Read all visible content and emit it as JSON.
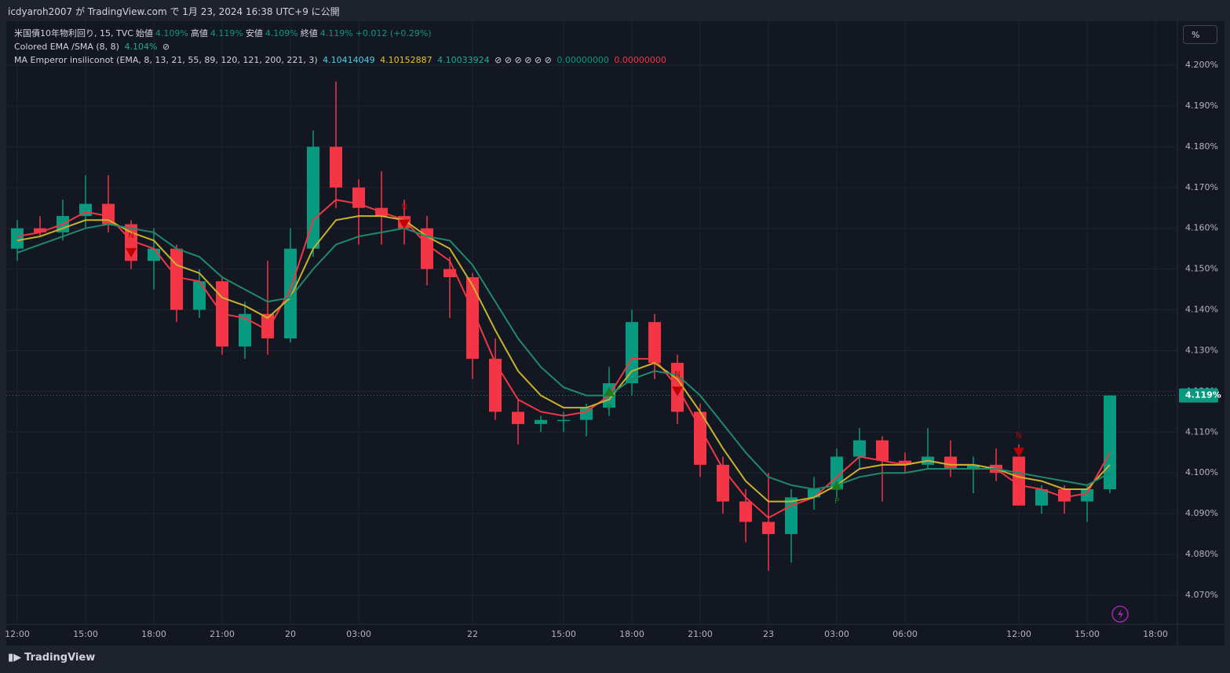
{
  "header": {
    "publish": "icdyaroh2007 が TradingView.com で 1月 23, 2024 16:38 UTC+9 に公開"
  },
  "legend": {
    "symbol": "米国債10年物利回り, 15, TVC",
    "open_label": "始値",
    "open": "4.109%",
    "high_label": "高値",
    "high": "4.119%",
    "low_label": "安値",
    "low": "4.109%",
    "close_label": "終値",
    "close": "4.119%",
    "change": "+0.012 (+0.29%)",
    "ind1": "Colored EMA /SMA (8, 8)",
    "ind1_value": "4.104%",
    "ind1_icon": "⊘",
    "ind2": "MA Emperor insiliconot (EMA, 8, 13, 21, 55, 89, 120, 121, 200, 221, 3)",
    "ind2_v1": "4.10414049",
    "ind2_v2": "4.10152887",
    "ind2_v3": "4.10033924",
    "ind2_icons": "⊘ ⊘ ⊘ ⊘ ⊘ ⊘",
    "ind2_v4": "0.00000000",
    "ind2_v5": "0.00000000"
  },
  "scale_button": "%",
  "footer": "TradingView",
  "chart_data": {
    "type": "candlestick",
    "categories": [
      "12:00",
      null,
      null,
      "15:00",
      null,
      null,
      "18:00",
      null,
      null,
      "21:00",
      null,
      null,
      "20",
      null,
      null,
      "03:00",
      null,
      null,
      null,
      null,
      "22",
      null,
      null,
      null,
      "15:00",
      null,
      null,
      "18:00",
      null,
      null,
      "21:00",
      null,
      null,
      "23",
      null,
      null,
      "03:00",
      null,
      null,
      "06:00",
      null,
      null,
      null,
      null,
      "12:00",
      null,
      null,
      "15:00",
      null,
      null,
      "18:00"
    ],
    "candles": [
      [
        4.155,
        4.162,
        4.152,
        4.16
      ],
      [
        4.16,
        4.163,
        4.158,
        4.159
      ],
      [
        4.159,
        4.167,
        4.157,
        4.163
      ],
      [
        4.163,
        4.173,
        4.16,
        4.166
      ],
      [
        4.166,
        4.173,
        4.159,
        4.161
      ],
      [
        4.161,
        4.162,
        4.15,
        4.152
      ],
      [
        4.152,
        4.16,
        4.145,
        4.155
      ],
      [
        4.155,
        4.156,
        4.137,
        4.14
      ],
      [
        4.14,
        4.15,
        4.138,
        4.147
      ],
      [
        4.147,
        4.148,
        4.129,
        4.131
      ],
      [
        4.131,
        4.142,
        4.128,
        4.139
      ],
      [
        4.139,
        4.152,
        4.129,
        4.133
      ],
      [
        4.133,
        4.16,
        4.132,
        4.155
      ],
      [
        4.155,
        4.184,
        4.153,
        4.18
      ],
      [
        4.18,
        4.196,
        4.165,
        4.17
      ],
      [
        4.17,
        4.172,
        4.156,
        4.165
      ],
      [
        4.165,
        4.174,
        4.156,
        4.163
      ],
      [
        4.163,
        4.167,
        4.156,
        4.16
      ],
      [
        4.16,
        4.163,
        4.146,
        4.15
      ],
      [
        4.15,
        4.153,
        4.138,
        4.148
      ],
      [
        4.148,
        4.149,
        4.123,
        4.128
      ],
      [
        4.128,
        4.133,
        4.113,
        4.115
      ],
      [
        4.115,
        4.118,
        4.107,
        4.112
      ],
      [
        4.112,
        4.114,
        4.11,
        4.113
      ],
      [
        4.113,
        4.115,
        4.11,
        4.113
      ],
      [
        4.113,
        4.117,
        4.109,
        4.116
      ],
      [
        4.116,
        4.126,
        4.114,
        4.122
      ],
      [
        4.122,
        4.14,
        4.119,
        4.137
      ],
      [
        4.137,
        4.139,
        4.123,
        4.127
      ],
      [
        4.127,
        4.129,
        4.112,
        4.115
      ],
      [
        4.115,
        4.117,
        4.099,
        4.102
      ],
      [
        4.102,
        4.104,
        4.09,
        4.093
      ],
      [
        4.093,
        4.096,
        4.083,
        4.088
      ],
      [
        4.088,
        4.1,
        4.076,
        4.085
      ],
      [
        4.085,
        4.096,
        4.078,
        4.094
      ],
      [
        4.094,
        4.099,
        4.091,
        4.096
      ],
      [
        4.096,
        4.106,
        4.094,
        4.104
      ],
      [
        4.104,
        4.111,
        4.101,
        4.108
      ],
      [
        4.108,
        4.109,
        4.093,
        4.103
      ],
      [
        4.103,
        4.105,
        4.1,
        4.102
      ],
      [
        4.102,
        4.111,
        4.101,
        4.104
      ],
      [
        4.104,
        4.108,
        4.099,
        4.101
      ],
      [
        4.101,
        4.104,
        4.095,
        4.102
      ],
      [
        4.102,
        4.106,
        4.098,
        4.1
      ],
      [
        4.104,
        4.107,
        4.095,
        4.092
      ],
      [
        4.092,
        4.097,
        4.09,
        4.096
      ],
      [
        4.096,
        4.097,
        4.09,
        4.093
      ],
      [
        4.093,
        4.097,
        4.088,
        4.096
      ],
      [
        4.096,
        4.119,
        4.095,
        4.119
      ],
      null,
      null
    ],
    "up_color": "#089981",
    "down_color": "#f23645",
    "lines": [
      {
        "color": "#f23645",
        "values": [
          4.158,
          4.159,
          4.161,
          4.164,
          4.163,
          4.157,
          4.155,
          4.148,
          4.147,
          4.139,
          4.138,
          4.135,
          4.145,
          4.162,
          4.167,
          4.166,
          4.164,
          4.162,
          4.156,
          4.152,
          4.14,
          4.127,
          4.118,
          4.115,
          4.114,
          4.115,
          4.119,
          4.128,
          4.128,
          4.121,
          4.111,
          4.101,
          4.094,
          4.089,
          4.092,
          4.094,
          4.099,
          4.104,
          4.103,
          4.102,
          4.103,
          4.102,
          4.102,
          4.101,
          4.097,
          4.096,
          4.094,
          4.095,
          4.105,
          null,
          null
        ]
      },
      {
        "color": "#c9b22a",
        "values": [
          4.157,
          4.158,
          4.16,
          4.162,
          4.162,
          4.159,
          4.157,
          4.151,
          4.149,
          4.143,
          4.141,
          4.138,
          4.143,
          4.155,
          4.162,
          4.163,
          4.163,
          4.162,
          4.158,
          4.155,
          4.146,
          4.135,
          4.125,
          4.119,
          4.116,
          4.116,
          4.118,
          4.125,
          4.127,
          4.123,
          4.115,
          4.106,
          4.098,
          4.093,
          4.093,
          4.094,
          4.097,
          4.101,
          4.102,
          4.102,
          4.103,
          4.102,
          4.102,
          4.101,
          4.099,
          4.098,
          4.096,
          4.096,
          4.102,
          null,
          null
        ]
      },
      {
        "color": "#1f8a6a",
        "values": [
          4.154,
          4.156,
          4.158,
          4.16,
          4.161,
          4.16,
          4.159,
          4.155,
          4.153,
          4.148,
          4.145,
          4.142,
          4.143,
          4.15,
          4.156,
          4.158,
          4.159,
          4.16,
          4.158,
          4.157,
          4.151,
          4.142,
          4.133,
          4.126,
          4.121,
          4.119,
          4.119,
          4.123,
          4.125,
          4.124,
          4.119,
          4.112,
          4.105,
          4.099,
          4.097,
          4.096,
          4.097,
          4.099,
          4.1,
          4.1,
          4.101,
          4.101,
          4.101,
          4.101,
          4.1,
          4.099,
          4.098,
          4.097,
          4.1,
          null,
          null
        ]
      }
    ],
    "signals": [
      {
        "label": "N",
        "index": 5,
        "price": 4.154,
        "kind": "down"
      },
      {
        "label": "N",
        "index": 17,
        "price": 4.161,
        "kind": "down"
      },
      {
        "label": "P",
        "index": 26,
        "price": 4.12,
        "kind": "up"
      },
      {
        "label": "N",
        "index": 29,
        "price": 4.12,
        "kind": "down"
      },
      {
        "label": "P",
        "index": 36,
        "price": 4.097,
        "kind": "up"
      },
      {
        "label": "N",
        "index": 44,
        "price": 4.105,
        "kind": "down"
      }
    ],
    "last_price": {
      "value": 4.119,
      "label": "4.119%"
    },
    "ylim": [
      4.0645,
      4.2055
    ],
    "yticks": [
      {
        "value": 4.07,
        "label": "4.070%"
      },
      {
        "value": 4.08,
        "label": "4.080%"
      },
      {
        "value": 4.09,
        "label": "4.090%"
      },
      {
        "value": 4.1,
        "label": "4.100%"
      },
      {
        "value": 4.11,
        "label": "4.110%"
      },
      {
        "value": 4.12,
        "label": "4.120%"
      },
      {
        "value": 4.13,
        "label": "4.130%"
      },
      {
        "value": 4.14,
        "label": "4.140%"
      },
      {
        "value": 4.15,
        "label": "4.150%"
      },
      {
        "value": 4.16,
        "label": "4.160%"
      },
      {
        "value": 4.17,
        "label": "4.170%"
      },
      {
        "value": 4.18,
        "label": "4.180%"
      },
      {
        "value": 4.19,
        "label": "4.190%"
      },
      {
        "value": 4.2,
        "label": "4.200%"
      }
    ],
    "grid": true
  }
}
